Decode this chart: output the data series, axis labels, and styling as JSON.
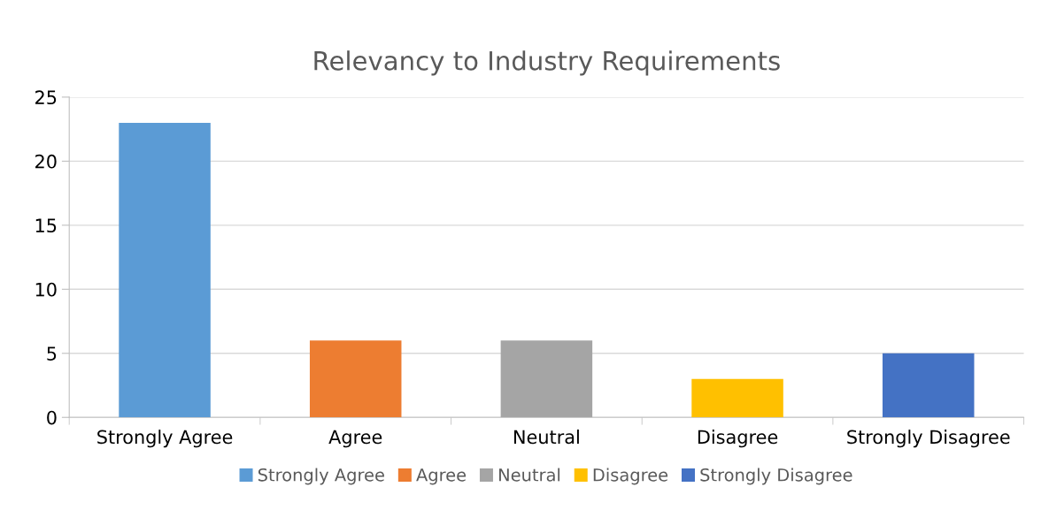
{
  "chart_data": {
    "type": "bar",
    "title": "Relevancy to Industry Requirements",
    "categories": [
      "Strongly Agree",
      "Agree",
      "Neutral",
      "Disagree",
      "Strongly Disagree"
    ],
    "series": [
      {
        "name": "Strongly Agree",
        "color": "#5b9bd5",
        "values": [
          23,
          null,
          null,
          null,
          null
        ]
      },
      {
        "name": "Agree",
        "color": "#ed7d31",
        "values": [
          null,
          6,
          null,
          null,
          null
        ]
      },
      {
        "name": "Neutral",
        "color": "#a5a5a5",
        "values": [
          null,
          null,
          6,
          null,
          null
        ]
      },
      {
        "name": "Disagree",
        "color": "#ffc000",
        "values": [
          null,
          null,
          null,
          3,
          null
        ]
      },
      {
        "name": "Strongly Disagree",
        "color": "#4472c4",
        "values": [
          null,
          null,
          null,
          null,
          5
        ]
      }
    ],
    "ylim": [
      0,
      25
    ],
    "yticks": [
      0,
      5,
      10,
      15,
      20,
      25
    ],
    "grid": "y",
    "legend": "bottom"
  }
}
